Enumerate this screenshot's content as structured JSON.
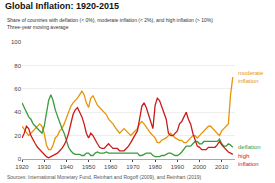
{
  "chart_data": {
    "type": "line",
    "title": "Global Inflation: 1920-2015",
    "subtitle": [
      "Share of countries with deflation (< 0%), moderate inflation (< 2%), and high inflation (> 10%)",
      "Three-year moving average"
    ],
    "source": "Sources: International Monetary Fund, Reinhart and Rogoff (2009), and Reinhart (2019)",
    "x": [
      1920,
      1921,
      1922,
      1923,
      1924,
      1925,
      1926,
      1927,
      1928,
      1929,
      1930,
      1931,
      1932,
      1933,
      1934,
      1935,
      1936,
      1937,
      1938,
      1939,
      1940,
      1941,
      1942,
      1943,
      1944,
      1945,
      1946,
      1947,
      1948,
      1949,
      1950,
      1951,
      1952,
      1953,
      1954,
      1955,
      1956,
      1957,
      1958,
      1959,
      1960,
      1961,
      1962,
      1963,
      1964,
      1965,
      1966,
      1967,
      1968,
      1969,
      1970,
      1971,
      1972,
      1973,
      1974,
      1975,
      1976,
      1977,
      1978,
      1979,
      1980,
      1981,
      1982,
      1983,
      1984,
      1985,
      1986,
      1987,
      1988,
      1989,
      1990,
      1991,
      1992,
      1993,
      1994,
      1995,
      1996,
      1997,
      1998,
      1999,
      2000,
      2001,
      2002,
      2003,
      2004,
      2005,
      2006,
      2007,
      2008,
      2009,
      2010,
      2011,
      2012,
      2013,
      2014,
      2015
    ],
    "series": [
      {
        "name": "moderate\ninflation",
        "color": "#e8950a",
        "values": [
          28,
          25,
          22,
          20,
          22,
          24,
          26,
          28,
          30,
          28,
          22,
          12,
          8,
          8,
          12,
          18,
          20,
          24,
          26,
          30,
          35,
          40,
          45,
          48,
          50,
          52,
          55,
          58,
          55,
          48,
          44,
          52,
          54,
          50,
          46,
          44,
          42,
          40,
          38,
          34,
          32,
          30,
          27,
          24,
          22,
          24,
          26,
          24,
          22,
          20,
          22,
          24,
          26,
          30,
          32,
          30,
          27,
          24,
          22,
          20,
          18,
          14,
          14,
          16,
          17,
          18,
          20,
          22,
          20,
          18,
          17,
          16,
          16,
          14,
          14,
          16,
          18,
          20,
          20,
          18,
          20,
          22,
          24,
          26,
          28,
          28,
          26,
          24,
          22,
          20,
          24,
          26,
          28,
          30,
          55,
          70
        ]
      },
      {
        "name": "deflation",
        "color": "#3a9c3a",
        "values": [
          48,
          44,
          40,
          36,
          34,
          30,
          28,
          26,
          24,
          22,
          28,
          40,
          50,
          55,
          50,
          42,
          36,
          30,
          26,
          22,
          16,
          10,
          7,
          5,
          4,
          4,
          4,
          3,
          3,
          5,
          5,
          3,
          3,
          5,
          6,
          5,
          5,
          5,
          6,
          5,
          5,
          5,
          5,
          5,
          5,
          5,
          5,
          5,
          5,
          5,
          5,
          5,
          5,
          3,
          3,
          4,
          5,
          5,
          5,
          3,
          2,
          2,
          2,
          3,
          3,
          4,
          5,
          5,
          4,
          3,
          3,
          4,
          6,
          9,
          11,
          11,
          11,
          13,
          15,
          15,
          13,
          13,
          15,
          15,
          15,
          15,
          15,
          15,
          15,
          17,
          13,
          11,
          11,
          13,
          12,
          10
        ]
      },
      {
        "name": "high\ninflation",
        "color": "#cc1a1a",
        "values": [
          18,
          22,
          28,
          26,
          20,
          16,
          13,
          10,
          8,
          6,
          4,
          2,
          1,
          2,
          3,
          4,
          5,
          7,
          9,
          12,
          16,
          22,
          30,
          38,
          42,
          44,
          40,
          36,
          30,
          22,
          18,
          22,
          20,
          16,
          13,
          10,
          9,
          9,
          11,
          13,
          11,
          9,
          9,
          9,
          7,
          7,
          7,
          9,
          11,
          14,
          17,
          20,
          24,
          34,
          45,
          48,
          44,
          38,
          32,
          26,
          46,
          52,
          50,
          44,
          40,
          34,
          22,
          20,
          20,
          22,
          24,
          30,
          32,
          36,
          40,
          34,
          30,
          22,
          16,
          11,
          10,
          8,
          8,
          8,
          10,
          10,
          10,
          10,
          12,
          15,
          12,
          10,
          8,
          6,
          5,
          4
        ]
      }
    ],
    "xlim": [
      1920,
      2016
    ],
    "ylim": [
      0,
      100
    ],
    "xticks": [
      1920,
      1930,
      1940,
      1950,
      1960,
      1970,
      1980,
      1990,
      2000,
      2010
    ],
    "yticks": [
      0,
      20,
      40,
      60,
      80,
      100
    ],
    "grid": true
  }
}
